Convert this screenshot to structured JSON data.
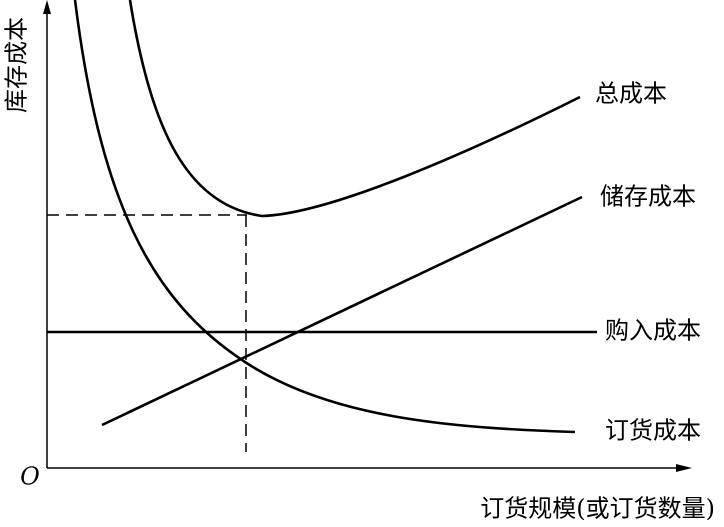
{
  "axes": {
    "y_label": "库存成本",
    "x_label": "订货规模(或订货数量)",
    "origin": "O"
  },
  "curves": [
    {
      "label": "总成本"
    },
    {
      "label": "储存成本"
    },
    {
      "label": "购入成本"
    },
    {
      "label": "订货成本"
    }
  ]
}
